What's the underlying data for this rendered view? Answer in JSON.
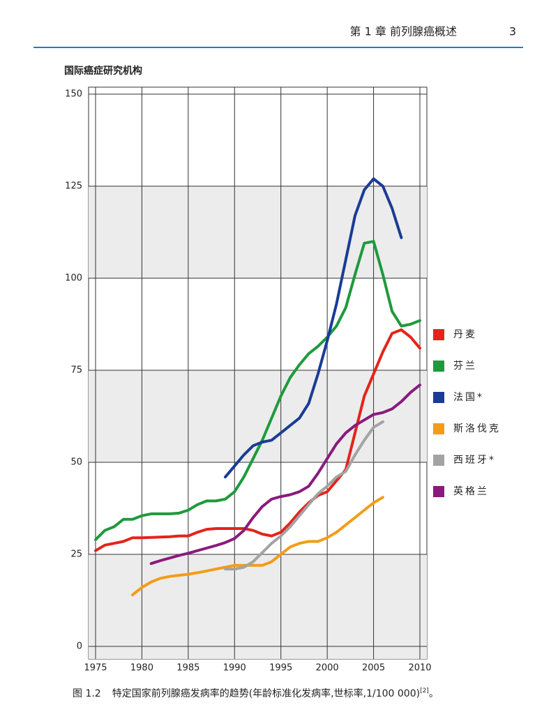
{
  "page_header": {
    "chapter": "第 1 章  前列腺癌概述",
    "page": "3"
  },
  "caption": {
    "label": "图 1.2",
    "text": "特定国家前列腺癌发病率的趋势(年龄标准化发病率,世标率,1/100 000)",
    "ref": "[2]",
    "end": "。"
  },
  "chart_data": {
    "type": "line",
    "title": "国际癌症研究机构",
    "x": [
      1975,
      1976,
      1977,
      1978,
      1979,
      1980,
      1981,
      1982,
      1983,
      1984,
      1985,
      1986,
      1987,
      1988,
      1989,
      1990,
      1991,
      1992,
      1993,
      1994,
      1995,
      1996,
      1997,
      1998,
      1999,
      2000,
      2001,
      2002,
      2003,
      2004,
      2005,
      2006,
      2007,
      2008,
      2009,
      2010
    ],
    "xlim": [
      1975,
      2010
    ],
    "xticks": [
      1975,
      1980,
      1985,
      1990,
      1995,
      2000,
      2005,
      2010
    ],
    "ylim": [
      0,
      150
    ],
    "yticks": [
      0,
      25,
      50,
      75,
      100,
      125,
      150
    ],
    "grid": true,
    "legend": "right",
    "series": [
      {
        "name": "丹麦",
        "color": "#e3241b",
        "values": [
          26,
          27.5,
          28,
          28.5,
          29.5,
          29.5,
          29.6,
          29.7,
          29.8,
          30,
          30,
          31,
          31.8,
          32,
          32,
          32,
          32,
          31.5,
          30.5,
          30,
          31,
          33.5,
          36.5,
          39,
          41,
          42,
          45,
          48,
          58,
          68,
          74,
          80,
          85,
          86,
          84,
          81
        ]
      },
      {
        "name": "芬兰",
        "color": "#1e9a3c",
        "values": [
          29,
          31.5,
          32.5,
          34.5,
          34.5,
          35.5,
          36,
          36,
          36,
          36.2,
          37,
          38.5,
          39.5,
          39.5,
          40,
          42,
          46,
          51,
          56,
          62,
          68,
          73,
          76.5,
          79.5,
          81.5,
          84,
          87,
          92,
          101,
          109.5,
          110,
          101,
          91,
          87,
          87.5,
          88.5
        ]
      },
      {
        "name": "法国*",
        "color": "#1a3c95",
        "values": [
          null,
          null,
          null,
          null,
          null,
          null,
          null,
          null,
          null,
          null,
          null,
          null,
          null,
          null,
          46,
          49,
          52,
          54.5,
          55.5,
          56,
          58,
          60,
          62,
          66,
          74,
          83,
          93,
          105,
          117,
          124,
          127,
          125,
          119,
          111,
          null,
          null
        ]
      },
      {
        "name": "斯洛伐克",
        "color": "#f39c1a",
        "values": [
          null,
          null,
          null,
          null,
          14,
          16,
          17.5,
          18.5,
          19,
          19.3,
          19.6,
          20,
          20.5,
          21,
          21.5,
          22,
          22,
          22,
          22,
          23,
          25,
          27,
          28,
          28.5,
          28.5,
          29.5,
          31,
          33,
          35,
          37,
          39,
          40.5,
          null,
          null,
          null,
          null
        ]
      },
      {
        "name": "西班牙*",
        "color": "#a3a3a3",
        "values": [
          null,
          null,
          null,
          null,
          null,
          null,
          null,
          null,
          null,
          null,
          null,
          null,
          null,
          null,
          21,
          21,
          21.5,
          23,
          25.5,
          28,
          30,
          32.5,
          35.5,
          38.5,
          41.5,
          43.5,
          46,
          47.5,
          52,
          56,
          59.5,
          61,
          null,
          null,
          null,
          null
        ]
      },
      {
        "name": "英格兰",
        "color": "#8a1a7e",
        "values": [
          null,
          null,
          null,
          null,
          null,
          null,
          22.5,
          23.3,
          24,
          24.7,
          25.3,
          26,
          26.7,
          27.4,
          28.2,
          29.3,
          31.5,
          35,
          38,
          40,
          40.7,
          41.2,
          42,
          43.5,
          47,
          51,
          55,
          58,
          60,
          61.5,
          63,
          63.5,
          64.5,
          66.5,
          69,
          71
        ]
      }
    ]
  }
}
